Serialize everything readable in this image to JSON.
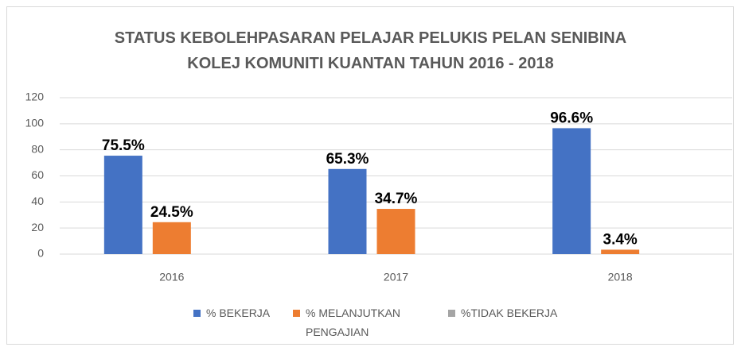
{
  "chart_data": {
    "type": "bar",
    "title": "STATUS KEBOLEHPASARAN PELAJAR PELUKIS PELAN SENIBINA\nKOLEJ KOMUNITI KUANTAN TAHUN 2016 - 2018",
    "categories": [
      "2016",
      "2017",
      "2018"
    ],
    "series": [
      {
        "name": "% BEKERJA",
        "color": "#4472c4",
        "values": [
          75.5,
          65.3,
          96.6
        ],
        "value_labels": [
          "75.5%",
          "65.3%",
          "96.6%"
        ]
      },
      {
        "name": "% MELANJUTKAN PENGAJIAN",
        "color": "#ed7d31",
        "values": [
          24.5,
          34.7,
          3.4
        ],
        "value_labels": [
          "24.5%",
          "34.7%",
          "3.4%"
        ]
      },
      {
        "name": "%TIDAK BEKERJA",
        "color": "#a5a5a5",
        "values": [
          0,
          0,
          0
        ]
      }
    ],
    "ylim": [
      0,
      120
    ],
    "yticks": [
      0,
      20,
      40,
      60,
      80,
      100,
      120
    ],
    "grid": true,
    "legend": "bottom"
  }
}
